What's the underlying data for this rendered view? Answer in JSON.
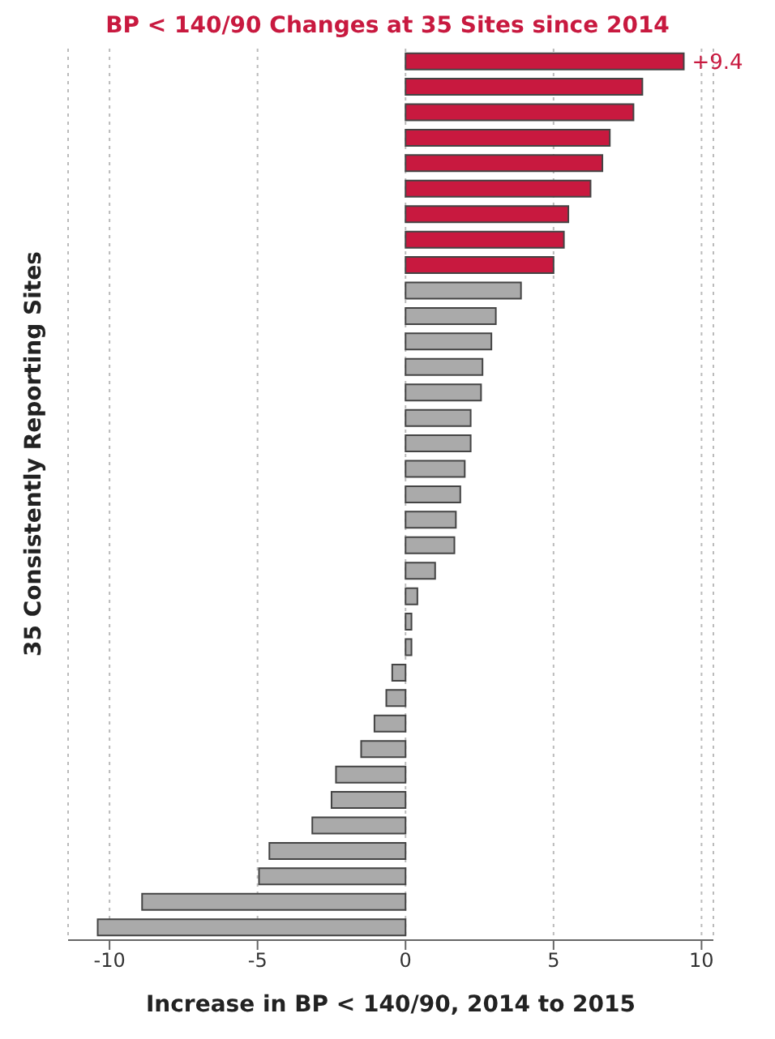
{
  "chart_data": {
    "type": "bar",
    "orientation": "horizontal",
    "title": "BP < 140/90 Changes at 35 Sites since 2014",
    "xlabel": "Increase in BP < 140/90, 2014 to 2015",
    "ylabel": "35 Consistently Reporting Sites",
    "categories": [
      null,
      null,
      null,
      null,
      null,
      null,
      null,
      null,
      null,
      null,
      null,
      null,
      null,
      null,
      null,
      null,
      null,
      null,
      null,
      null,
      null,
      null,
      null,
      null,
      null,
      null,
      null,
      null,
      null,
      null,
      null,
      null,
      null,
      null,
      null
    ],
    "values": [
      9.4,
      8.0,
      7.7,
      6.9,
      6.65,
      6.25,
      5.5,
      5.35,
      5.0,
      3.9,
      3.05,
      2.9,
      2.6,
      2.55,
      2.2,
      2.2,
      2.0,
      1.85,
      1.7,
      1.65,
      1.0,
      0.4,
      0.2,
      0.2,
      -0.45,
      -0.65,
      -1.05,
      -1.5,
      -2.35,
      -2.5,
      -3.15,
      -4.6,
      -4.95,
      -8.9,
      -10.4
    ],
    "colors": [
      "#c8193f",
      "#c8193f",
      "#c8193f",
      "#c8193f",
      "#c8193f",
      "#c8193f",
      "#c8193f",
      "#c8193f",
      "#c8193f",
      "#aaaaaa",
      "#aaaaaa",
      "#aaaaaa",
      "#aaaaaa",
      "#aaaaaa",
      "#aaaaaa",
      "#aaaaaa",
      "#aaaaaa",
      "#aaaaaa",
      "#aaaaaa",
      "#aaaaaa",
      "#aaaaaa",
      "#aaaaaa",
      "#aaaaaa",
      "#aaaaaa",
      "#aaaaaa",
      "#aaaaaa",
      "#aaaaaa",
      "#aaaaaa",
      "#aaaaaa",
      "#aaaaaa",
      "#aaaaaa",
      "#aaaaaa",
      "#aaaaaa",
      "#aaaaaa",
      "#aaaaaa"
    ],
    "value_labels": [
      "+9.4",
      null,
      null,
      null,
      null,
      null,
      null,
      null,
      null,
      null,
      null,
      null,
      null,
      null,
      null,
      null,
      null,
      null,
      null,
      null,
      null,
      null,
      null,
      null,
      null,
      null,
      null,
      null,
      null,
      null,
      null,
      null,
      null,
      null,
      null
    ],
    "xlim": [
      -11.4,
      10.4
    ],
    "xticks": [
      -10,
      -5,
      0,
      5,
      10
    ],
    "grid": "x",
    "tick_labels": "x"
  }
}
